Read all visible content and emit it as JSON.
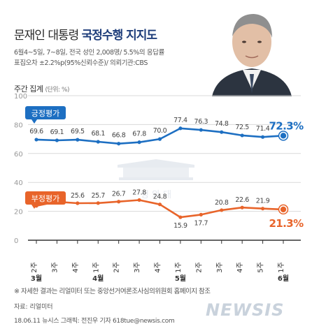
{
  "header": {
    "title_part1": "문재인 대통령",
    "title_part2": "국정수행 지지도",
    "meta_line1": "6월4~5일, 7~8일, 전국 성인 2,008명/ 5.5%의 응답률",
    "meta_line2": "표집오차 ±2.2%p(95%신뢰수준)/ 의뢰기관:CBS"
  },
  "chart_caption": "주간 집계",
  "chart_unit": "(단위: %)",
  "watermark_text": "청 와 대",
  "footnote": "※ 자세한 결과는 리얼미터 또는 중앙선거여론조사심의위원회 홈페이지 참조",
  "source": "자료: 리얼미터",
  "credit": "18.06.11 뉴시스 그래픽: 전진우 기자 618tue@newsis.com",
  "brand": "NEWSIS",
  "colors": {
    "positive": "#1d6fc2",
    "negative": "#e8642a",
    "grid": "#d9d9d9",
    "axis": "#333333",
    "title_accent": "#1e3d7a"
  },
  "chart_data": {
    "type": "line",
    "categories": [
      "2주 3월",
      "3주",
      "4주",
      "1주 4월",
      "2주",
      "3주",
      "4주",
      "1주 5월",
      "2주",
      "3주",
      "4주",
      "5주",
      "1주 6월"
    ],
    "category_rows": [
      {
        "week": "2주",
        "month": "3월"
      },
      {
        "week": "3주",
        "month": ""
      },
      {
        "week": "4주",
        "month": ""
      },
      {
        "week": "1주",
        "month": "4월"
      },
      {
        "week": "2주",
        "month": ""
      },
      {
        "week": "3주",
        "month": ""
      },
      {
        "week": "4주",
        "month": ""
      },
      {
        "week": "1주",
        "month": "5월"
      },
      {
        "week": "2주",
        "month": ""
      },
      {
        "week": "3주",
        "month": ""
      },
      {
        "week": "4주",
        "month": ""
      },
      {
        "week": "5주",
        "month": ""
      },
      {
        "week": "1주",
        "month": "6월"
      }
    ],
    "yticks": [
      0,
      20,
      40,
      60,
      80,
      100
    ],
    "ylim": [
      0,
      100
    ],
    "grid": true,
    "series": [
      {
        "name": "긍정평가",
        "color": "#1d6fc2",
        "values": [
          69.6,
          69.1,
          69.5,
          68.1,
          66.8,
          67.8,
          70.0,
          77.4,
          76.3,
          74.8,
          72.5,
          71.4,
          72.3
        ],
        "labels": [
          "69.6",
          "69.1",
          "69.5",
          "68.1",
          "66.8",
          "67.8",
          "70.0",
          "77.4",
          "76.3",
          "74.8",
          "72.5",
          "71.4",
          "72.3%"
        ]
      },
      {
        "name": "부정평가",
        "color": "#e8642a",
        "values": [
          23.8,
          26.6,
          25.6,
          25.7,
          26.7,
          27.8,
          24.8,
          15.9,
          17.7,
          20.8,
          22.6,
          21.9,
          21.3
        ],
        "labels": [
          "23.8",
          "26.6",
          "25.6",
          "25.7",
          "26.7",
          "27.8",
          "24.8",
          "15.9",
          "17.7",
          "20.8",
          "22.6",
          "21.9",
          "21.3%"
        ]
      }
    ]
  }
}
